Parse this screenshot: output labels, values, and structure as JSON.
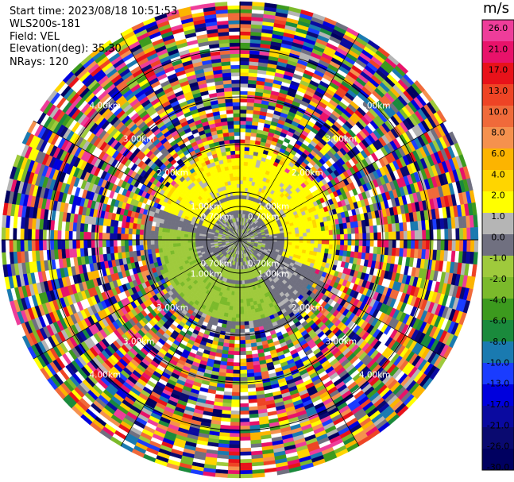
{
  "header": {
    "start_time": "Start time: 2023/08/18 10:51:53",
    "site": "WLS200s-181",
    "field": "Field: VEL",
    "elevation": "Elevation(deg): 35.30",
    "nrays": "NRays: 120"
  },
  "colorbar": {
    "unit": "m/s",
    "ticks": [
      "26.0",
      "21.0",
      "17.0",
      "13.0",
      "10.0",
      "8.0",
      "6.0",
      "4.0",
      "2.0",
      "1.0",
      "0.0",
      "-1.0",
      "-2.0",
      "-4.0",
      "-6.0",
      "-8.0",
      "-10.0",
      "-13.0",
      "-17.0",
      "-21.0",
      "-26.0",
      "-30.0"
    ],
    "colors": [
      "#ee3d9a",
      "#e8126a",
      "#e8121a",
      "#ee4425",
      "#f06a3a",
      "#f5914e",
      "#fcb400",
      "#ffd500",
      "#ffff00",
      "#b5b5b5",
      "#707080",
      "#9fca3c",
      "#7bba2b",
      "#3c9a1e",
      "#1a8a3c",
      "#1a7ab0",
      "#1a3cff",
      "#0000dd",
      "#0a0aa0",
      "#0a0a70",
      "#000060"
    ]
  },
  "chart_data": {
    "type": "heatmap",
    "title": "",
    "projection": "polar PPI",
    "nrays": 120,
    "range_rings_km": [
      0.7,
      1.0,
      2.0,
      3.0,
      4.0
    ],
    "range_labels": [
      "0.70km",
      "1.00km",
      "2.00km",
      "3.00km",
      "4.00km"
    ],
    "max_range_km": 5.0,
    "colorbar_range": [
      -30,
      26
    ],
    "unit": "m/s",
    "description_regions": [
      {
        "name": "near-zero core",
        "range_km": [
          0,
          2.0
        ],
        "value": 0.0
      },
      {
        "name": "northern positive lobe",
        "range_km": [
          0.6,
          2.0
        ],
        "value": 2.0
      },
      {
        "name": "southern negative band",
        "range_km": [
          0.6,
          1.9
        ],
        "value": -1.5
      },
      {
        "name": "noise region",
        "range_km": [
          2.0,
          5.0
        ],
        "value": "random"
      }
    ]
  }
}
